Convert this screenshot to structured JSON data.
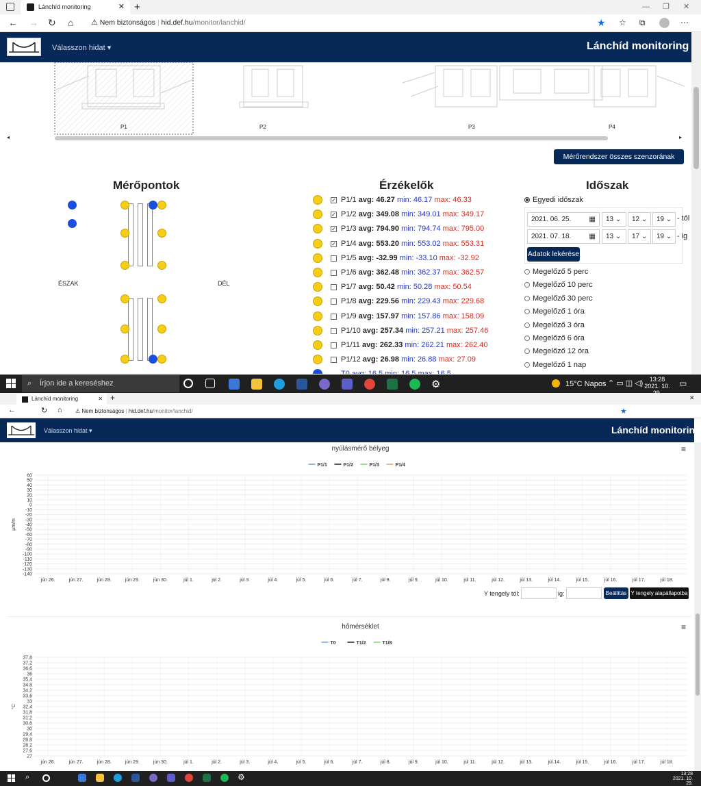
{
  "browser": {
    "tab_title": "Lánchíd monitoring",
    "warn_text": "Nem biztonságos",
    "url_host": "hid.def.hu",
    "url_path": "/monitor/lanchid/"
  },
  "nav": {
    "menu_label": "Válasszon hidat",
    "site_title": "Lánchíd monitoring"
  },
  "schematic": {
    "labels": [
      "P1",
      "P2",
      "P3",
      "P4"
    ]
  },
  "select_all_button": "Mérőrendszer összes szenzorának kijelölése",
  "points": {
    "title": "Mérőpontok",
    "north": "ÉSZAK",
    "south": "DÉL"
  },
  "sensors": {
    "title": "Érzékelők",
    "items": [
      {
        "name": "P1/1",
        "avg": "46.27",
        "min": "46.17",
        "max": "46.33",
        "checked": true
      },
      {
        "name": "P1/2",
        "avg": "349.08",
        "min": "349.01",
        "max": "349.17",
        "checked": true
      },
      {
        "name": "P1/3",
        "avg": "794.90",
        "min": "794.74",
        "max": "795.00",
        "checked": true
      },
      {
        "name": "P1/4",
        "avg": "553.20",
        "min": "553.02",
        "max": "553.31",
        "checked": true
      },
      {
        "name": "P1/5",
        "avg": "-32.99",
        "min": "-33.10",
        "max": "-32.92",
        "checked": false
      },
      {
        "name": "P1/6",
        "avg": "362.48",
        "min": "362.37",
        "max": "362.57",
        "checked": false
      },
      {
        "name": "P1/7",
        "avg": "50.42",
        "min": "50.28",
        "max": "50.54",
        "checked": false
      },
      {
        "name": "P1/8",
        "avg": "229.56",
        "min": "229.43",
        "max": "229.68",
        "checked": false
      },
      {
        "name": "P1/9",
        "avg": "157.97",
        "min": "157.86",
        "max": "158.09",
        "checked": false
      },
      {
        "name": "P1/10",
        "avg": "257.34",
        "min": "257.21",
        "max": "257.46",
        "checked": false
      },
      {
        "name": "P1/11",
        "avg": "262.33",
        "min": "262.21",
        "max": "262.40",
        "checked": false
      },
      {
        "name": "P1/12",
        "avg": "26.98",
        "min": "26.88",
        "max": "27.09",
        "checked": false
      }
    ],
    "partial_row": "T0 avg: 16.5 min: 16.5 max: 16.5",
    "labels": {
      "avg": "avg:",
      "min": "min:",
      "max": "max:"
    }
  },
  "period": {
    "title": "Időszak",
    "custom": "Egyedi időszak",
    "from_date": "2021. 06. 25.",
    "from_h": "13",
    "from_m": "12",
    "from_s": "19",
    "from_suffix": "- tól",
    "to_date": "2021. 07. 18.",
    "to_h": "13",
    "to_m": "17",
    "to_s": "19",
    "to_suffix": "- ig",
    "fetch_button": "Adatok lekérése",
    "options": [
      "Megelőző 5 perc",
      "Megelőző 10 perc",
      "Megelőző 30 perc",
      "Megelőző 1 óra",
      "Megelőző 3 óra",
      "Megelőző 6 óra",
      "Megelőző 12 óra",
      "Megelőző 1 nap"
    ]
  },
  "taskbar": {
    "search": "Írjon ide a kereséshez",
    "weather": "15°C Napos",
    "time": "13:28",
    "date": "2021. 10. 29."
  },
  "chart_controls": {
    "y_from": "Y tengely tól:",
    "y_to": "ig:",
    "apply": "Beállítás",
    "reset": "Y tengely alapállapotba"
  },
  "x_ticks": [
    "jún 26.",
    "jún 27.",
    "jún 28.",
    "jún 29.",
    "jún 30.",
    "júl 1.",
    "júl 2.",
    "júl 3.",
    "júl 4.",
    "júl 5.",
    "júl 6.",
    "júl 7.",
    "júl 8.",
    "júl 9.",
    "júl 10.",
    "júl 11.",
    "júl 12.",
    "júl 13.",
    "júl 14.",
    "júl 15.",
    "júl 16.",
    "júl 17.",
    "júl 18."
  ],
  "chart_data": [
    {
      "type": "line",
      "title": "nyúlásmérő bélyeg",
      "ylabel": "µm/m",
      "ylim": [
        -140,
        60
      ],
      "yticks": [
        60,
        50,
        40,
        30,
        20,
        10,
        0,
        -10,
        -20,
        -30,
        -40,
        -50,
        -60,
        -70,
        -80,
        -90,
        -100,
        -110,
        -120,
        -130,
        -140
      ],
      "legend": "top-center",
      "series": [
        {
          "name": "P1/1",
          "color": "#6ea3d8"
        },
        {
          "name": "P1/2",
          "color": "#222222"
        },
        {
          "name": "P1/3",
          "color": "#7ed46b"
        },
        {
          "name": "P1/4",
          "color": "#f0a060"
        }
      ]
    },
    {
      "type": "line",
      "title": "hőmérséklet",
      "ylabel": "°C",
      "ylim": [
        27,
        37.8
      ],
      "yticks": [
        "37,8",
        "37,2",
        "36,6",
        "36",
        "35,4",
        "34,8",
        "34,2",
        "33,6",
        "33",
        "32,4",
        "31,8",
        "31,2",
        "30,6",
        "30",
        "29,4",
        "28,8",
        "28,2",
        "27,6",
        "27"
      ],
      "legend": "top-center",
      "series": [
        {
          "name": "T0",
          "color": "#6ea3d8"
        },
        {
          "name": "T1/2",
          "color": "#222222"
        },
        {
          "name": "T1/8",
          "color": "#7ed46b"
        }
      ]
    }
  ],
  "taskbar2": {
    "time": "13:28",
    "date": "2021. 10. 29."
  }
}
